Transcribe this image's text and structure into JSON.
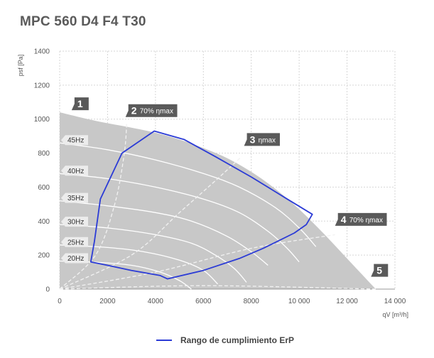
{
  "title": "MPC 560 D4 F4 T30",
  "chart_data": {
    "type": "area",
    "title": "MPC 560 D4 F4 T30",
    "xlabel": "qV [m³/h]",
    "ylabel": "psf [Pa]",
    "xlim": [
      0,
      14000
    ],
    "ylim": [
      0,
      1400
    ],
    "xticks": [
      0,
      2000,
      4000,
      6000,
      8000,
      10000,
      12000,
      14000
    ],
    "xtick_labels": [
      "0",
      "2000",
      "4000",
      "6000",
      "8000",
      "10 000",
      "12 000",
      "14 000"
    ],
    "yticks": [
      0,
      200,
      400,
      600,
      800,
      1000,
      1200,
      1400
    ],
    "ytick_labels": [
      "0",
      "200",
      "400",
      "600",
      "800",
      "1000",
      "1200",
      "1400"
    ],
    "grid": true,
    "envelope": [
      [
        0,
        1040
      ],
      [
        1500,
        990
      ],
      [
        3000,
        950
      ],
      [
        4000,
        920
      ],
      [
        5000,
        880
      ],
      [
        6000,
        830
      ],
      [
        7000,
        770
      ],
      [
        8000,
        690
      ],
      [
        9000,
        590
      ],
      [
        10000,
        470
      ],
      [
        11000,
        330
      ],
      [
        12000,
        180
      ],
      [
        12800,
        60
      ],
      [
        13200,
        0
      ],
      [
        0,
        0
      ]
    ],
    "speed_curves": [
      {
        "label": "45Hz",
        "points": [
          [
            0,
            860
          ],
          [
            2000,
            820
          ],
          [
            4000,
            760
          ],
          [
            6000,
            680
          ],
          [
            7500,
            600
          ],
          [
            9000,
            480
          ],
          [
            10000,
            360
          ],
          [
            10700,
            250
          ]
        ]
      },
      {
        "label": "40Hz",
        "points": [
          [
            0,
            680
          ],
          [
            2000,
            650
          ],
          [
            4000,
            600
          ],
          [
            6000,
            530
          ],
          [
            7500,
            450
          ],
          [
            8700,
            340
          ],
          [
            9500,
            240
          ],
          [
            10000,
            160
          ]
        ]
      },
      {
        "label": "35Hz",
        "points": [
          [
            0,
            520
          ],
          [
            2000,
            490
          ],
          [
            4000,
            450
          ],
          [
            5500,
            400
          ],
          [
            7000,
            310
          ],
          [
            8000,
            220
          ],
          [
            8700,
            140
          ]
        ]
      },
      {
        "label": "30Hz",
        "points": [
          [
            0,
            380
          ],
          [
            2000,
            360
          ],
          [
            4000,
            320
          ],
          [
            5500,
            270
          ],
          [
            6500,
            200
          ],
          [
            7300,
            120
          ],
          [
            7800,
            40
          ]
        ]
      },
      {
        "label": "25Hz",
        "points": [
          [
            0,
            260
          ],
          [
            2000,
            245
          ],
          [
            3500,
            220
          ],
          [
            5000,
            170
          ],
          [
            6000,
            110
          ],
          [
            6600,
            30
          ]
        ]
      },
      {
        "label": "20Hz",
        "points": [
          [
            0,
            165
          ],
          [
            1500,
            158
          ],
          [
            3000,
            140
          ],
          [
            4200,
            100
          ],
          [
            5000,
            50
          ],
          [
            5500,
            0
          ]
        ]
      }
    ],
    "efficiency_lines": [
      {
        "label": "2 70% ηmax",
        "points": [
          [
            0,
            0
          ],
          [
            1500,
            200
          ],
          [
            2300,
            500
          ],
          [
            2700,
            800
          ],
          [
            2800,
            980
          ]
        ]
      },
      {
        "label": "3 ηmax",
        "points": [
          [
            0,
            0
          ],
          [
            3000,
            200
          ],
          [
            5000,
            450
          ],
          [
            6600,
            650
          ],
          [
            7600,
            780
          ]
        ]
      },
      {
        "label": "4 70% ηmax",
        "points": [
          [
            0,
            0
          ],
          [
            4000,
            100
          ],
          [
            8000,
            240
          ],
          [
            11500,
            320
          ]
        ]
      },
      {
        "label": "5",
        "points": [
          [
            0,
            0
          ],
          [
            6000,
            20
          ],
          [
            13200,
            0
          ]
        ]
      }
    ],
    "markers": [
      {
        "num": "1",
        "text": "",
        "x": 500,
        "y": 1040
      },
      {
        "num": "2",
        "text": "70% ηmax",
        "x": 2750,
        "y": 1000
      },
      {
        "num": "3",
        "text": "ηmax",
        "x": 7700,
        "y": 830
      },
      {
        "num": "4",
        "text": "70% ηmax",
        "x": 11500,
        "y": 360
      },
      {
        "num": "5",
        "text": "",
        "x": 13000,
        "y": 60
      }
    ],
    "erp_polygon": [
      [
        1300,
        160
      ],
      [
        1450,
        280
      ],
      [
        1700,
        530
      ],
      [
        2600,
        800
      ],
      [
        3950,
        930
      ],
      [
        5200,
        880
      ],
      [
        6500,
        780
      ],
      [
        8000,
        660
      ],
      [
        9500,
        530
      ],
      [
        10550,
        440
      ],
      [
        10300,
        380
      ],
      [
        9800,
        330
      ],
      [
        8500,
        240
      ],
      [
        7500,
        180
      ],
      [
        6000,
        110
      ],
      [
        4500,
        60
      ],
      [
        4200,
        80
      ],
      [
        3000,
        110
      ],
      [
        2000,
        140
      ],
      [
        1300,
        160
      ]
    ],
    "legend": [
      {
        "name": "Rango de cumplimiento ErP",
        "color": "#2b3bd6"
      }
    ],
    "legend_position": "bottom-center"
  },
  "colors": {
    "envelope": "#c8c8c8",
    "erp": "#2b3bd6",
    "marker": "#5a5a5a",
    "hz_label_bg": "#ececec"
  }
}
